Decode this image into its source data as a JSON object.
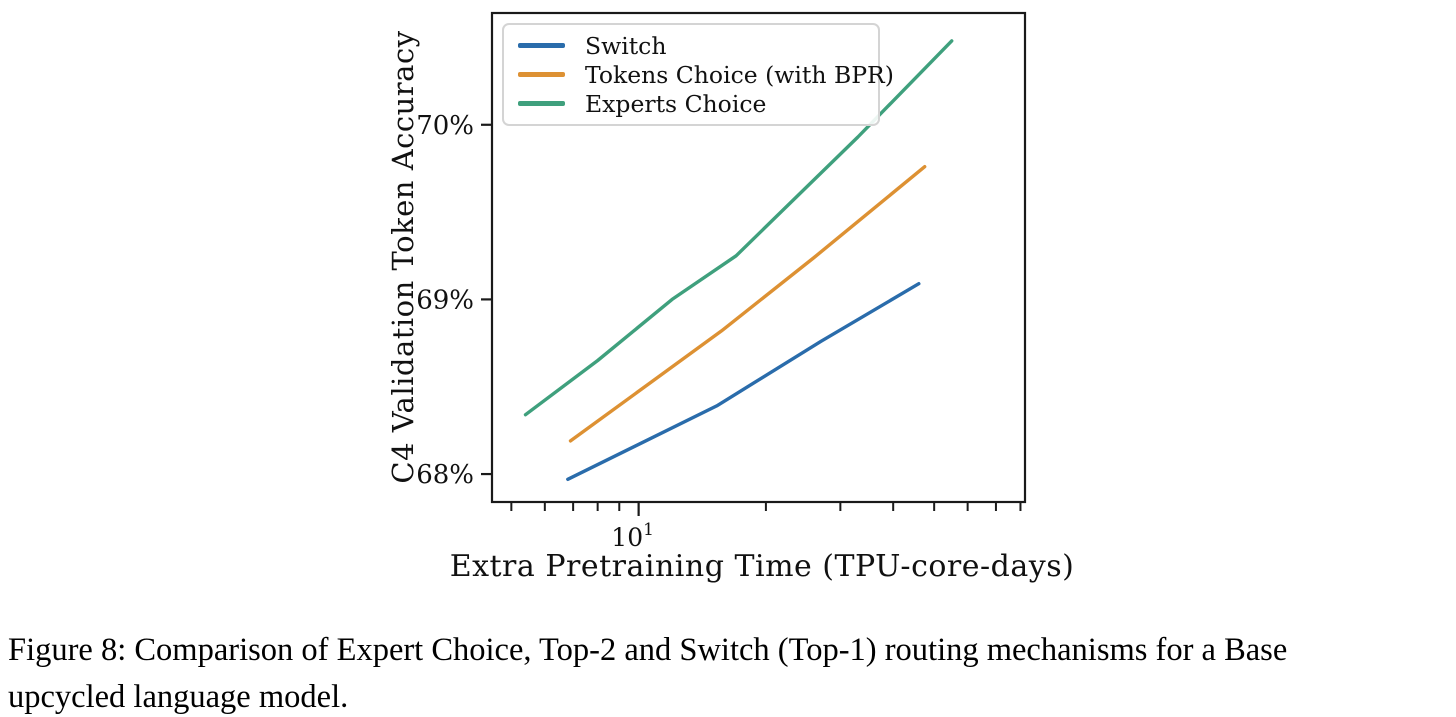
{
  "figure": {
    "caption_lines": [
      "Figure 8: Comparison of Expert Choice, Top-2 and Switch (Top-1) routing mechanisms for a Base",
      "upcycled language model."
    ]
  },
  "chart_data": {
    "type": "line",
    "title": "",
    "xlabel": "Extra Pretraining Time (TPU-core-days)",
    "ylabel": "C4 Validation Token Accuracy",
    "xscale": "log",
    "xlim": [
      4.5,
      82
    ],
    "ylim": [
      67.84,
      70.64
    ],
    "grid": false,
    "legend_position": "upper left",
    "axis_color": "#1a1a1a",
    "yticks": [
      {
        "value": 70,
        "label": "70%"
      },
      {
        "value": 69,
        "label": "69%"
      },
      {
        "value": 68,
        "label": "68%"
      }
    ],
    "xticks_major": [
      {
        "value": 10,
        "base": "10",
        "exponent": "1"
      }
    ],
    "xticks_minor": [
      5,
      6,
      7,
      8,
      9,
      20,
      30,
      40,
      50,
      60,
      70,
      80
    ],
    "series": [
      {
        "name": "Switch",
        "color": "#2a6cab",
        "points": [
          [
            6.8,
            67.97
          ],
          [
            15.3,
            68.39
          ],
          [
            27,
            68.76
          ],
          [
            46,
            69.09
          ]
        ]
      },
      {
        "name": "Tokens Choice (with BPR)",
        "color": "#dd9133",
        "points": [
          [
            6.9,
            68.19
          ],
          [
            15.7,
            68.82
          ],
          [
            26,
            69.24
          ],
          [
            47.5,
            69.76
          ]
        ]
      },
      {
        "name": "Experts Choice",
        "color": "#3fa07d",
        "points": [
          [
            5.4,
            68.34
          ],
          [
            8,
            68.65
          ],
          [
            12,
            69.0
          ],
          [
            17,
            69.25
          ],
          [
            33,
            69.93
          ],
          [
            55,
            70.48
          ]
        ]
      }
    ]
  }
}
